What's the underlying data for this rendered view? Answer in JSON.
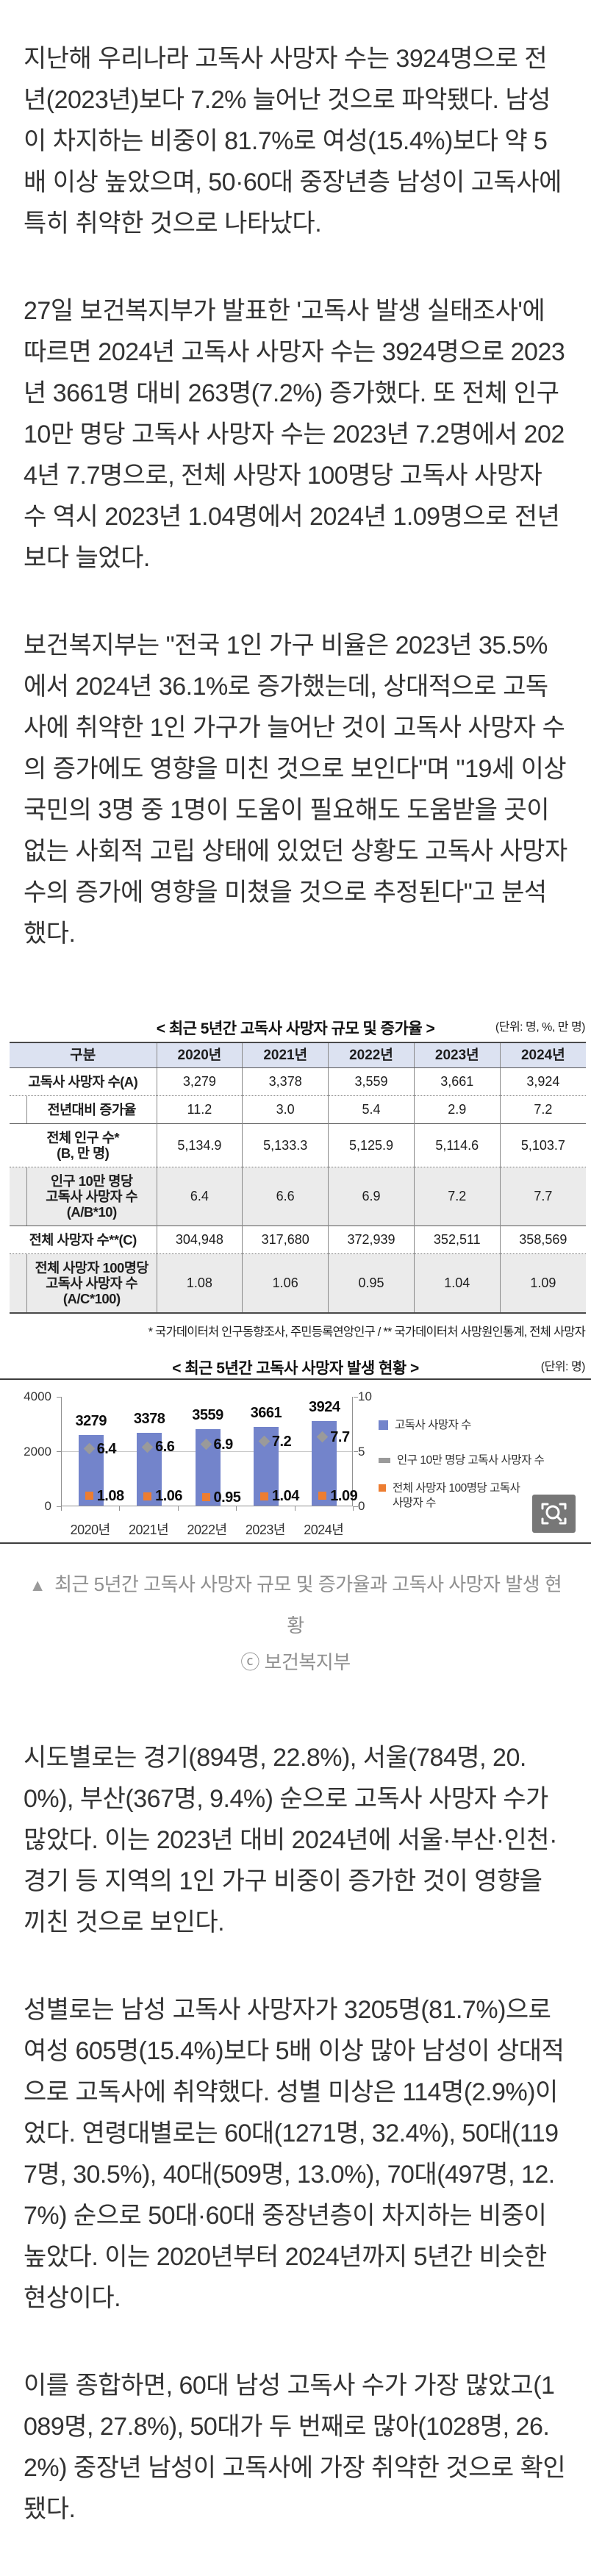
{
  "article": {
    "top_paragraphs": [
      "지난해 우리나라 고독사 사망자 수는 3924명으로 전년(2023년)보다 7.2% 늘어난 것으로 파악됐다. 남성이 차지하는 비중이 81.7%로 여성(15.4%)보다 약 5배 이상 높았으며, 50·60대 중장년층 남성이 고독사에 특히 취약한 것으로 나타났다.",
      "27일 보건복지부가 발표한 '고독사 발생 실태조사'에 따르면 2024년 고독사 사망자 수는 3924명으로 2023년 3661명 대비 263명(7.2%) 증가했다. 또 전체 인구 10만 명당 고독사 사망자 수는 2023년 7.2명에서 2024년 7.7명으로, 전체 사망자 100명당 고독사 사망자 수 역시 2023년 1.04명에서 2024년 1.09명으로 전년보다 늘었다.",
      "보건복지부는 \"전국 1인 가구 비율은 2023년 35.5%에서 2024년 36.1%로 증가했는데, 상대적으로 고독사에 취약한 1인 가구가 늘어난 것이 고독사 사망자 수의 증가에도 영향을 미친 것으로 보인다\"며 \"19세 이상 국민의 3명 중 1명이 도움이 필요해도 도움받을 곳이 없는 사회적 고립 상태에 있었던 상황도 고독사 사망자 수의 증가에 영향을 미쳤을 것으로 추정된다\"고 분석했다."
    ],
    "bottom_paragraphs": [
      "시도별로는 경기(894명, 22.8%), 서울(784명, 20.0%), 부산(367명, 9.4%) 순으로 고독사 사망자 수가 많았다. 이는 2023년 대비 2024년에 서울·부산·인천·경기 등 지역의 1인 가구 비중이 증가한 것이 영향을 끼친 것으로 보인다.",
      "성별로는 남성 고독사 사망자가 3205명(81.7%)으로 여성 605명(15.4%)보다 5배 이상 많아 남성이 상대적으로 고독사에 취약했다. 성별 미상은 114명(2.9%)이었다. 연령대별로는 60대(1271명, 32.4%), 50대(1197명, 30.5%), 40대(509명, 13.0%), 70대(497명, 12.7%) 순으로 50대·60대 중장년층이 차지하는 비중이 높았다. 이는 2020년부터 2024년까지 5년간 비슷한 현상이다.",
      "이를 종합하면, 60대 남성 고독사 수가 가장 많았고(1089명, 27.8%), 50대가 두 번째로 많아(1028명, 26.2%) 중장년 남성이 고독사에 가장 취약한 것으로 확인됐다."
    ]
  },
  "table": {
    "title": "< 최근 5년간 고독사 사망자 규모 및 증가율 >",
    "unit": "(단위: 명, %, 만 명)",
    "columns": [
      "구분",
      "2020년",
      "2021년",
      "2022년",
      "2023년",
      "2024년"
    ],
    "rows": [
      {
        "label": "고독사 사망자 수(A)",
        "indent": false,
        "shaded": false,
        "values": [
          "3,279",
          "3,378",
          "3,559",
          "3,661",
          "3,924"
        ]
      },
      {
        "label": "전년대비 증가율",
        "indent": true,
        "shaded": false,
        "values": [
          "11.2",
          "3.0",
          "5.4",
          "2.9",
          "7.2"
        ]
      },
      {
        "label": "전체 인구 수*\n(B, 만 명)",
        "indent": false,
        "shaded": false,
        "values": [
          "5,134.9",
          "5,133.3",
          "5,125.9",
          "5,114.6",
          "5,103.7"
        ]
      },
      {
        "label": "인구 10만 명당\n고독사 사망자 수\n(A/B*10)",
        "indent": true,
        "shaded": true,
        "values": [
          "6.4",
          "6.6",
          "6.9",
          "7.2",
          "7.7"
        ]
      },
      {
        "label": "전체 사망자 수**(C)",
        "indent": false,
        "shaded": false,
        "values": [
          "304,948",
          "317,680",
          "372,939",
          "352,511",
          "358,569"
        ]
      },
      {
        "label": "전체 사망자 100명당\n고독사 사망자 수\n(A/C*100)",
        "indent": true,
        "shaded": true,
        "values": [
          "1.08",
          "1.06",
          "0.95",
          "1.04",
          "1.09"
        ]
      }
    ],
    "footnote": "* 국가데이터처 인구동향조사, 주민등록연앙인구  /  ** 국가데이터처 사망원인통계, 전체 사망자"
  },
  "chart_data": {
    "type": "bar",
    "title": "< 최근 5년간 고독사 사망자 발생 현황 >",
    "unit": "(단위: 명)",
    "categories": [
      "2020년",
      "2021년",
      "2022년",
      "2023년",
      "2024년"
    ],
    "series": [
      {
        "name": "고독사 사망자 수",
        "marker": "bar",
        "axis": "left",
        "color": "#7384CB",
        "label_decimals": 0,
        "values": [
          3279,
          3378,
          3559,
          3661,
          3924
        ]
      },
      {
        "name": "인구 10만 명당 고독사 사망자 수",
        "marker": "diamond",
        "axis": "right",
        "color": "#9A9A9A",
        "label_decimals": 1,
        "values": [
          6.4,
          6.6,
          6.9,
          7.2,
          7.7
        ]
      },
      {
        "name": "전체 사망자 100명당 고독사 사망자 수",
        "marker": "square",
        "axis": "right",
        "color": "#ED7D31",
        "label_decimals": 2,
        "values": [
          1.08,
          1.06,
          0.95,
          1.04,
          1.09
        ]
      }
    ],
    "left_axis": {
      "ticks": [
        "0",
        "2000",
        "4000"
      ],
      "max": 4000
    },
    "right_axis": {
      "ticks": [
        "0",
        "5",
        "10"
      ],
      "max": 10
    },
    "grid": "horizontal-midline",
    "legend_position": "right"
  },
  "figure": {
    "caption_marker": "▲",
    "caption": "최근 5년간 고독사 사망자 규모 및 증가율과 고독사 사망자 발생 현황",
    "credit": "ⓒ 보건복지부"
  }
}
